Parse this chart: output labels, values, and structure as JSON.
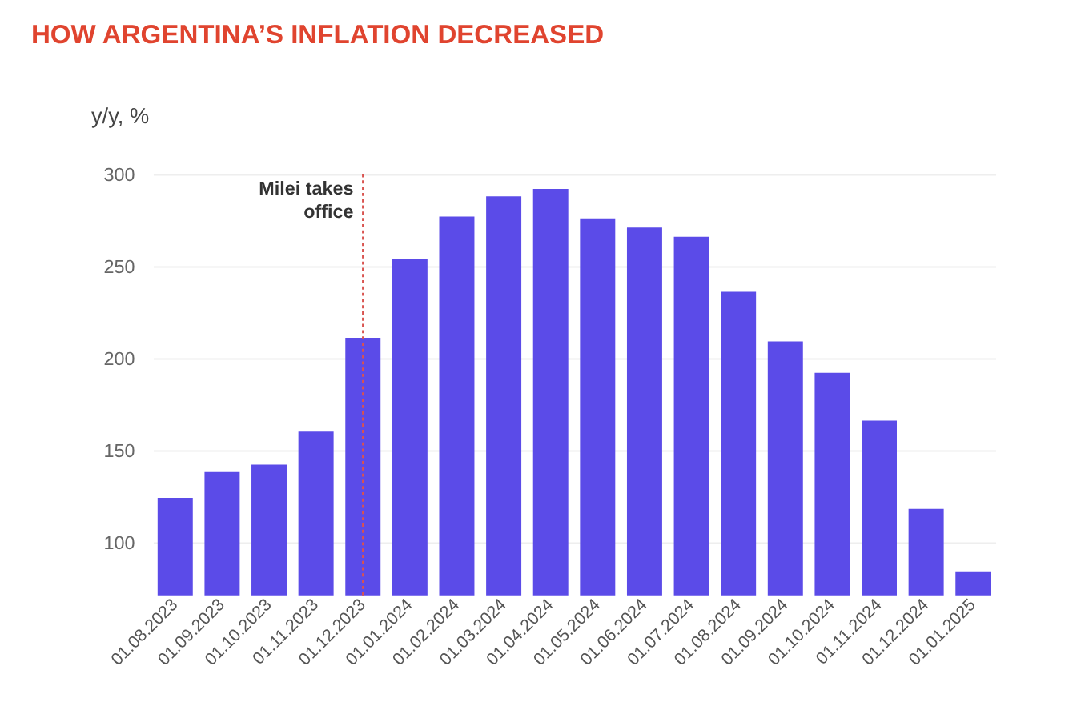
{
  "chart_data": {
    "type": "bar",
    "title": "HOW ARGENTINA’S INFLATION DECREASED",
    "ylabel": "y/y, %",
    "categories": [
      "01.08.2023",
      "01.09.2023",
      "01.10.2023",
      "01.11.2023",
      "01.12.2023",
      "01.01.2024",
      "01.02.2024",
      "01.03.2024",
      "01.04.2024",
      "01.05.2024",
      "01.06.2024",
      "01.07.2024",
      "01.08.2024",
      "01.09.2024",
      "01.10.2024",
      "01.11.2024",
      "01.12.2024",
      "01.01.2025"
    ],
    "values": [
      124,
      138,
      142,
      160,
      211,
      254,
      277,
      288,
      292,
      276,
      271,
      266,
      236,
      209,
      192,
      166,
      118,
      84
    ],
    "color": "#5b4be8",
    "ylim": [
      71,
      300
    ],
    "yticks": [
      100,
      150,
      200,
      250,
      300
    ],
    "grid": "y",
    "ref_lines": [
      {
        "axis": "x",
        "value": "01.12.2023",
        "label": "Milei takes office",
        "color": "#d9534f",
        "line_style": "dotted"
      }
    ]
  }
}
